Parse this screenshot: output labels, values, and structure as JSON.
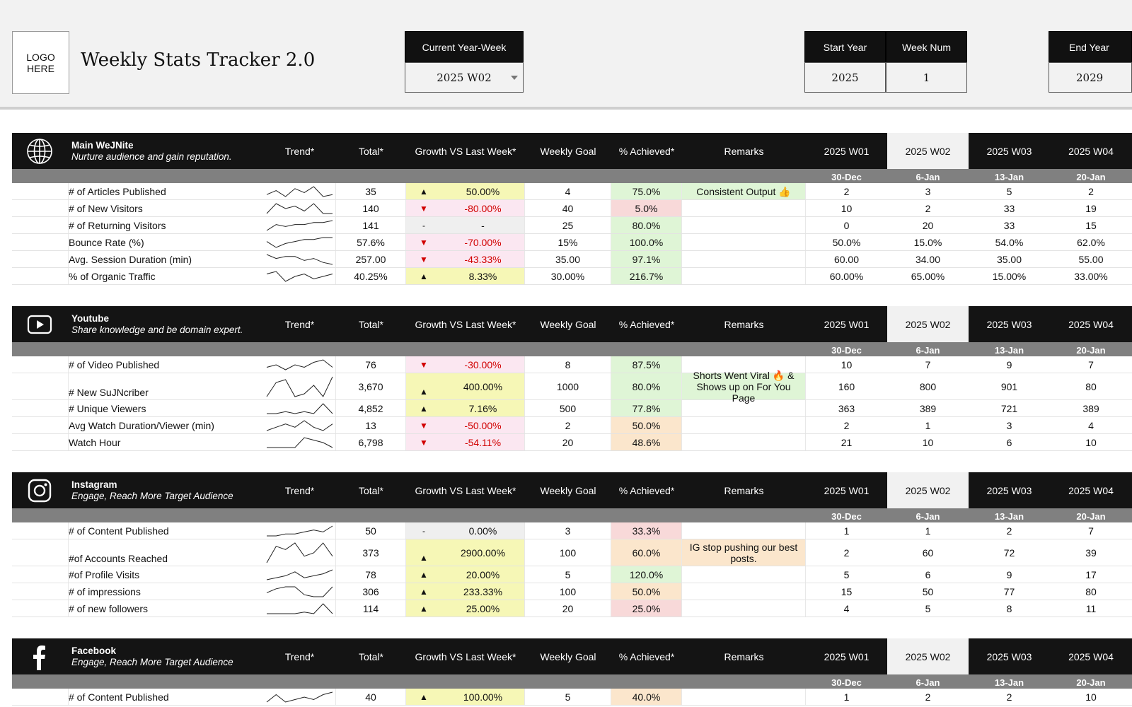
{
  "app": {
    "logo_text": "LOGO\nHERE",
    "title": "Weekly Stats Tracker 2.0",
    "current_year_week_label": "Current Year-Week",
    "current_year_week_value": "2025 W02",
    "start_year_label": "Start Year",
    "start_year_value": "2025",
    "week_num_label": "Week Num",
    "week_num_value": "1",
    "end_year_label": "End Year",
    "end_year_value": "2029"
  },
  "columns": {
    "trend": "Trend*",
    "total": "Total*",
    "growth": "Growth VS Last Week*",
    "goal": "Weekly Goal",
    "achieved": "% Achieved*",
    "remarks": "Remarks",
    "weeks": [
      "2025 W01",
      "2025 W02",
      "2025 W03",
      "2025 W04"
    ],
    "dates": [
      "30-Dec",
      "6-Jan",
      "13-Jan",
      "20-Jan"
    ]
  },
  "colors": {
    "header_bg": "#141414",
    "subheader_bg": "#808080",
    "current_week_bg": "#f1f1f1",
    "up_bg": "#f6f7b6",
    "down_bg": "#fbe7f1",
    "neutral_bg": "#efefef",
    "ach_green": "#dff5d6",
    "ach_red": "#f8d9d9",
    "ach_orange": "#fbe6cc",
    "remark_green": "#dff5d6",
    "remark_orange": "#fbe6cc"
  },
  "sections": [
    {
      "icon": "globe-icon",
      "name": "Main WeJNite",
      "subtitle": "Nurture audience and gain reputation.",
      "rows": [
        {
          "metric": "# of Articles Published",
          "total": "35",
          "dir": "up",
          "arrow": "▲",
          "growth": "50.00%",
          "goal": "4",
          "achieved": "75.0%",
          "ach": "green",
          "remark": "Consistent Output 👍",
          "remark_color": "green",
          "weeks": [
            "2",
            "3",
            "5",
            "2"
          ],
          "trend": [
            3,
            5,
            2,
            6,
            4,
            7,
            2,
            3
          ]
        },
        {
          "metric": "# of New Visitors",
          "total": "140",
          "dir": "down",
          "arrow": "▼",
          "growth": "-80.00%",
          "goal": "40",
          "achieved": "5.0%",
          "ach": "red",
          "remark": "",
          "remark_color": "",
          "weeks": [
            "10",
            "2",
            "33",
            "19"
          ],
          "trend": [
            2,
            6,
            4,
            5,
            3,
            6,
            2,
            2
          ]
        },
        {
          "metric": "# of Returning Visitors",
          "total": "141",
          "dir": "neutral",
          "arrow": "-",
          "growth": "-",
          "goal": "25",
          "achieved": "80.0%",
          "ach": "green",
          "remark": "",
          "remark_color": "",
          "weeks": [
            "0",
            "20",
            "33",
            "15"
          ],
          "trend": [
            1,
            4,
            3,
            4,
            4,
            5,
            5,
            6
          ]
        },
        {
          "metric": "Bounce Rate (%)",
          "total": "57.6%",
          "dir": "down",
          "arrow": "▼",
          "growth": "-70.00%",
          "goal": "15%",
          "achieved": "100.0%",
          "ach": "green",
          "remark": "",
          "remark_color": "",
          "weeks": [
            "50.0%",
            "15.0%",
            "54.0%",
            "62.0%"
          ],
          "trend": [
            4,
            1,
            3,
            4,
            5,
            5,
            6,
            6
          ]
        },
        {
          "metric": "Avg. Session Duration (min)",
          "total": "257.00",
          "dir": "down",
          "arrow": "▼",
          "growth": "-43.33%",
          "goal": "35.00",
          "achieved": "97.1%",
          "ach": "green",
          "remark": "",
          "remark_color": "",
          "weeks": [
            "60.00",
            "34.00",
            "35.00",
            "55.00"
          ],
          "trend": [
            6,
            4,
            5,
            5,
            3,
            4,
            2,
            1
          ]
        },
        {
          "metric": "% of Organic Traffic",
          "total": "40.25%",
          "dir": "up",
          "arrow": "▲",
          "growth": "8.33%",
          "goal": "30.00%",
          "achieved": "216.7%",
          "ach": "green",
          "remark": "",
          "remark_color": "",
          "weeks": [
            "60.00%",
            "65.00%",
            "15.00%",
            "33.00%"
          ],
          "trend": [
            5,
            6,
            2,
            4,
            5,
            3,
            4,
            5
          ]
        }
      ]
    },
    {
      "icon": "play-button-icon",
      "name": "Youtube",
      "subtitle": "Share knowledge and be domain expert.",
      "rows": [
        {
          "metric": "# of Video Published",
          "total": "76",
          "dir": "down",
          "arrow": "▼",
          "growth": "-30.00%",
          "goal": "8",
          "achieved": "87.5%",
          "ach": "green",
          "remark": "",
          "remark_color": "",
          "weeks": [
            "10",
            "7",
            "9",
            "7"
          ],
          "trend": [
            2,
            3,
            1,
            3,
            2,
            4,
            5,
            2
          ]
        },
        {
          "metric": "# New SuJNcriber",
          "total": "3,670",
          "dir": "up",
          "arrow": "▲",
          "growth": "400.00%",
          "goal": "1000",
          "achieved": "80.0%",
          "ach": "green",
          "remark": "Shorts Went Viral 🔥 & Shows up on For You Page",
          "remark_color": "green",
          "weeks": [
            "160",
            "800",
            "901",
            "80"
          ],
          "trend": [
            1,
            6,
            7,
            1,
            2,
            5,
            1,
            8
          ]
        },
        {
          "metric": "# Unique Viewers",
          "total": "4,852",
          "dir": "up",
          "arrow": "▲",
          "growth": "7.16%",
          "goal": "500",
          "achieved": "77.8%",
          "ach": "green",
          "remark": "",
          "remark_color": "",
          "weeks": [
            "363",
            "389",
            "721",
            "389"
          ],
          "trend": [
            1,
            1,
            2,
            1,
            2,
            1,
            6,
            1
          ]
        },
        {
          "metric": "Avg Watch Duration/Viewer (min)",
          "total": "13",
          "dir": "down",
          "arrow": "▼",
          "growth": "-50.00%",
          "goal": "2",
          "achieved": "50.0%",
          "ach": "orange",
          "remark": "",
          "remark_color": "",
          "weeks": [
            "2",
            "1",
            "3",
            "4"
          ],
          "trend": [
            2,
            3,
            4,
            3,
            5,
            3,
            2,
            4
          ]
        },
        {
          "metric": "Watch Hour",
          "total": "6,798",
          "dir": "down",
          "arrow": "▼",
          "growth": "-54.11%",
          "goal": "20",
          "achieved": "48.6%",
          "ach": "orange",
          "remark": "",
          "remark_color": "",
          "weeks": [
            "21",
            "10",
            "6",
            "10"
          ],
          "trend": [
            1,
            1,
            1,
            1,
            5,
            4,
            3,
            1
          ]
        }
      ]
    },
    {
      "icon": "instagram-icon",
      "name": "Instagram",
      "subtitle": "Engage, Reach More Target Audience",
      "rows": [
        {
          "metric": "# of Content Published",
          "total": "50",
          "dir": "neutral",
          "arrow": "-",
          "growth": "0.00%",
          "goal": "3",
          "achieved": "33.3%",
          "ach": "red",
          "remark": "",
          "remark_color": "",
          "weeks": [
            "1",
            "1",
            "2",
            "7"
          ],
          "trend": [
            1,
            1,
            2,
            2,
            3,
            4,
            3,
            6
          ]
        },
        {
          "metric": "#of Accounts Reached",
          "total": "373",
          "dir": "up",
          "arrow": "▲",
          "growth": "2900.00%",
          "goal": "100",
          "achieved": "60.0%",
          "ach": "orange",
          "remark": "IG stop pushing our best posts.",
          "remark_color": "orange",
          "weeks": [
            "2",
            "60",
            "72",
            "39"
          ],
          "trend": [
            1,
            6,
            5,
            7,
            3,
            4,
            7,
            3
          ]
        },
        {
          "metric": "#of Profile Visits",
          "total": "78",
          "dir": "up",
          "arrow": "▲",
          "growth": "20.00%",
          "goal": "5",
          "achieved": "120.0%",
          "ach": "green",
          "remark": "",
          "remark_color": "",
          "weeks": [
            "5",
            "6",
            "9",
            "17"
          ],
          "trend": [
            1,
            2,
            3,
            5,
            2,
            3,
            4,
            6
          ]
        },
        {
          "metric": "# of impressions",
          "total": "306",
          "dir": "up",
          "arrow": "▲",
          "growth": "233.33%",
          "goal": "100",
          "achieved": "50.0%",
          "ach": "orange",
          "remark": "",
          "remark_color": "",
          "weeks": [
            "15",
            "50",
            "77",
            "80"
          ],
          "trend": [
            3,
            5,
            6,
            6,
            2,
            1,
            1,
            6
          ]
        },
        {
          "metric": "# of new followers",
          "total": "114",
          "dir": "up",
          "arrow": "▲",
          "growth": "25.00%",
          "goal": "20",
          "achieved": "25.0%",
          "ach": "red",
          "remark": "",
          "remark_color": "",
          "weeks": [
            "4",
            "5",
            "8",
            "11"
          ],
          "trend": [
            1,
            1,
            1,
            1,
            2,
            1,
            7,
            1
          ]
        }
      ]
    },
    {
      "icon": "facebook-icon",
      "name": "Facebook",
      "subtitle": "Engage, Reach More Target Audience",
      "rows": [
        {
          "metric": "# of Content Published",
          "total": "40",
          "dir": "up",
          "arrow": "▲",
          "growth": "100.00%",
          "goal": "5",
          "achieved": "40.0%",
          "ach": "orange",
          "remark": "",
          "remark_color": "",
          "weeks": [
            "1",
            "2",
            "2",
            "10"
          ],
          "trend": [
            1,
            4,
            1,
            2,
            3,
            2,
            4,
            5
          ]
        }
      ]
    }
  ]
}
